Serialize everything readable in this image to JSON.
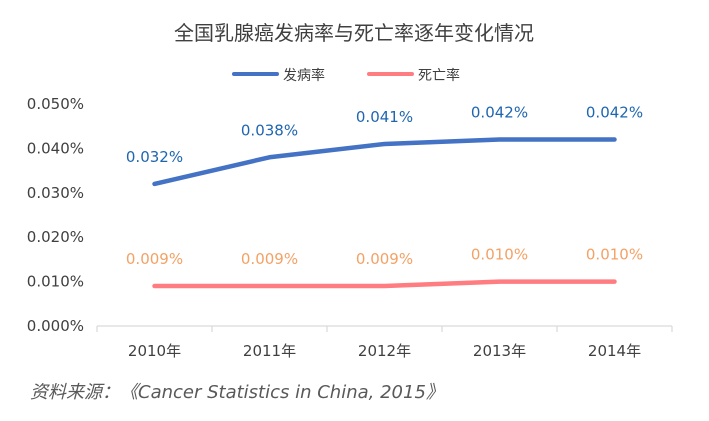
{
  "chart_data": {
    "type": "line",
    "title": "全国乳腺癌发病率与死亡率逐年变化情况",
    "categories": [
      "2010年",
      "2011年",
      "2012年",
      "2013年",
      "2014年"
    ],
    "series": [
      {
        "name": "发病率",
        "values": [
          0.032,
          0.038,
          0.041,
          0.042,
          0.042
        ],
        "labels": [
          "0.032%",
          "0.038%",
          "0.041%",
          "0.042%",
          "0.042%"
        ],
        "color": "#4472c4",
        "label_color": "#1f66b0"
      },
      {
        "name": "死亡率",
        "values": [
          0.009,
          0.009,
          0.009,
          0.01,
          0.01
        ],
        "labels": [
          "0.009%",
          "0.009%",
          "0.009%",
          "0.010%",
          "0.010%"
        ],
        "color": "#ff7c80",
        "label_color": "#f3a266"
      }
    ],
    "yticks": [
      0,
      0.01,
      0.02,
      0.03,
      0.04,
      0.05
    ],
    "ytick_labels": [
      "0.000%",
      "0.010%",
      "0.020%",
      "0.030%",
      "0.040%",
      "0.050%"
    ],
    "ylim": [
      0,
      0.05
    ],
    "grid": false,
    "legend_position": "top-center",
    "source_note": "资料来源：《Cancer Statistics in China, 2015》"
  }
}
